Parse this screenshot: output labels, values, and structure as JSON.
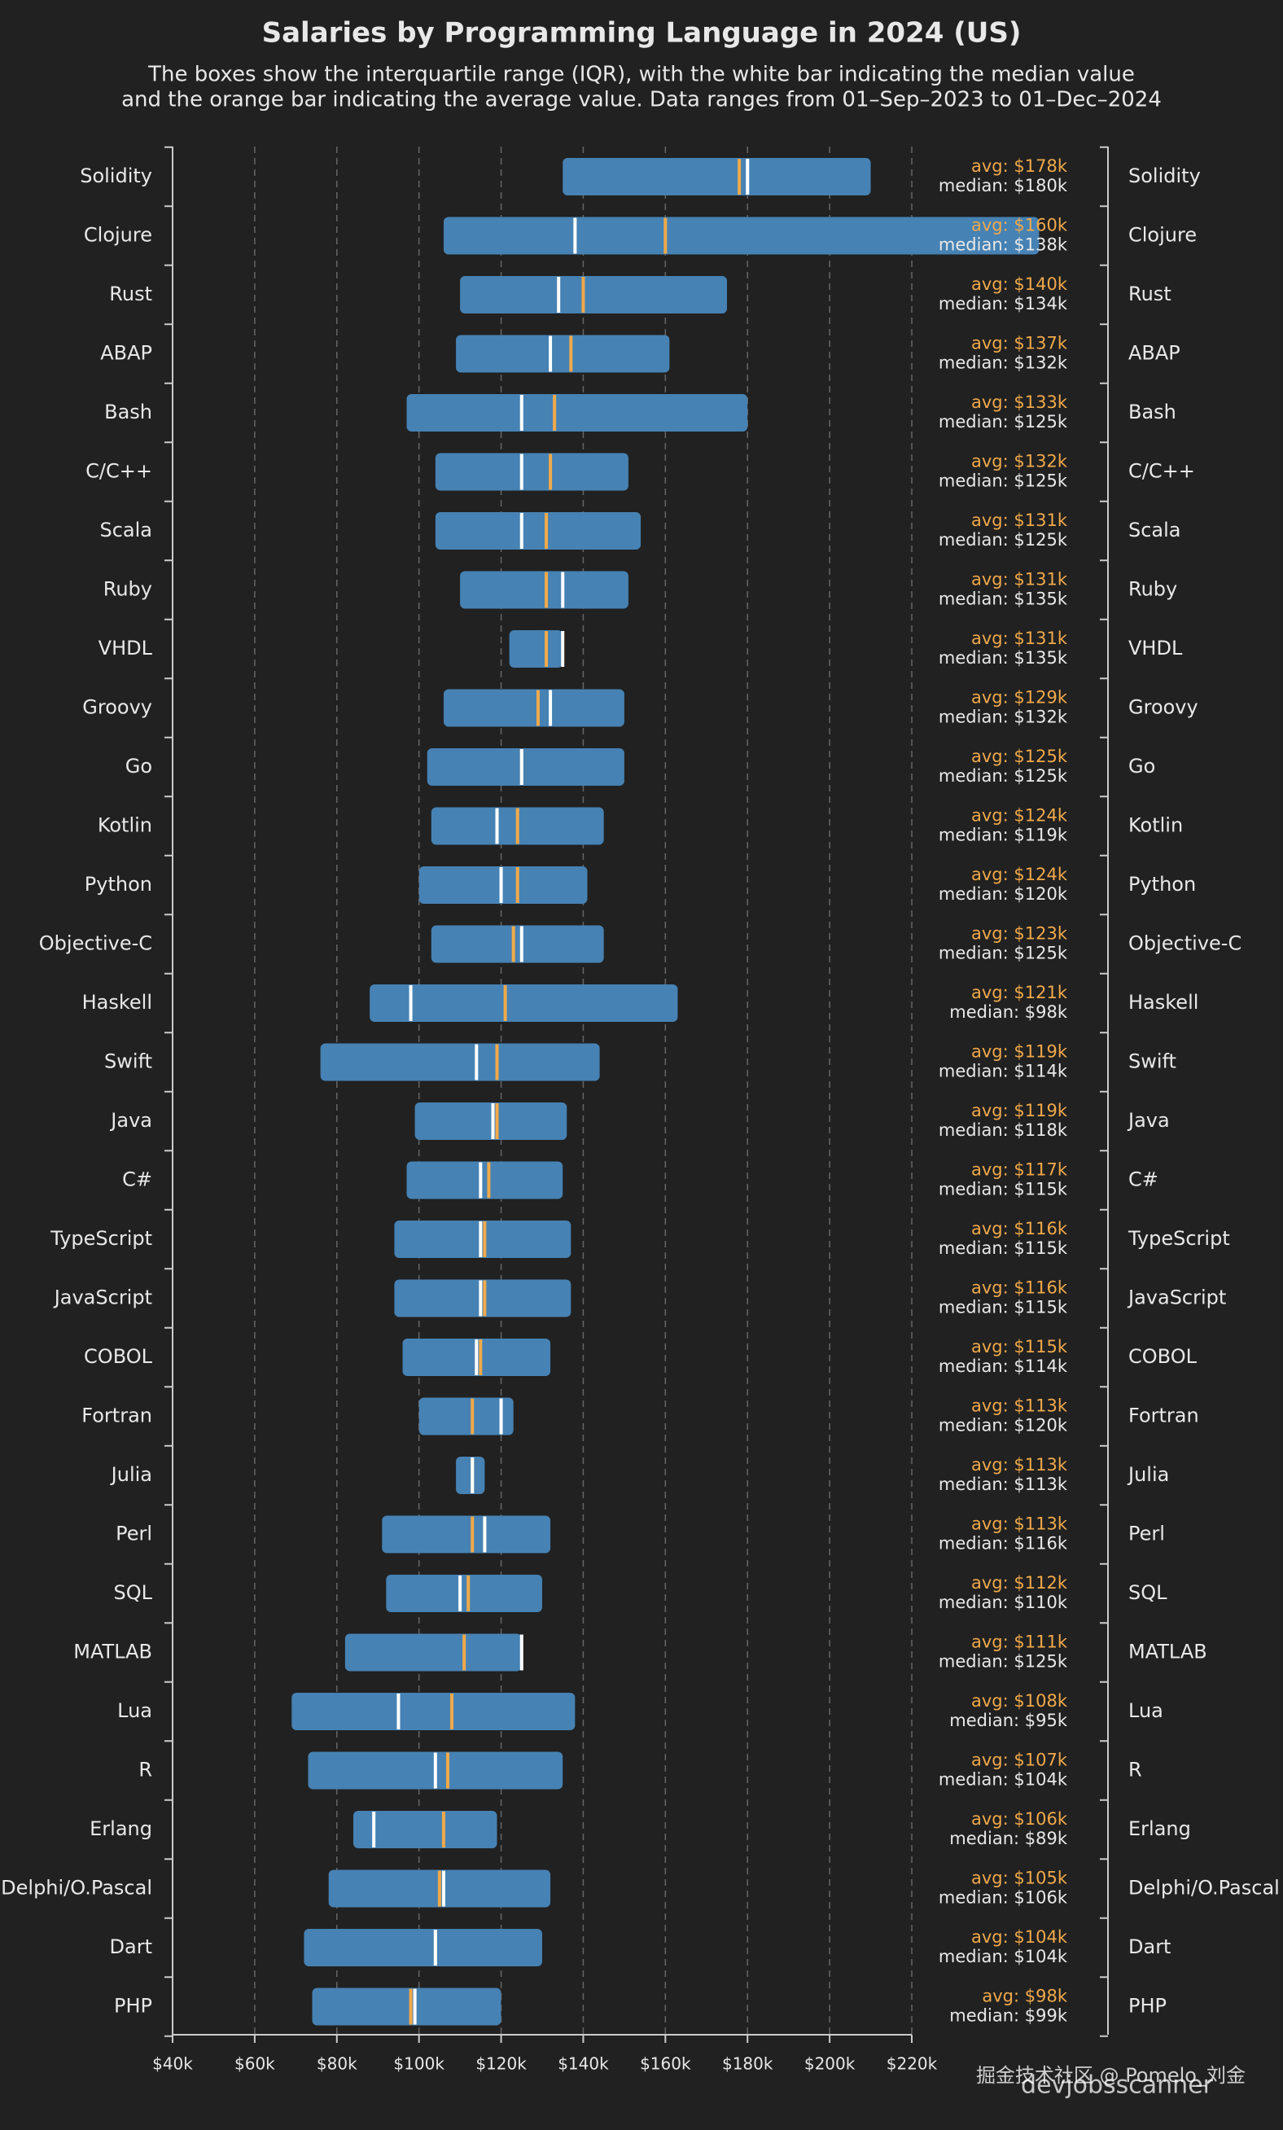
{
  "chart_data": {
    "type": "box",
    "title": "Salaries by Programming Language in 2024 (US)",
    "subtitle": [
      "The boxes show the interquartile range (IQR), with the white bar indicating the median value",
      "and the orange bar indicating the average value. Data ranges from 01–Sep–2023 to 01–Dec–2024"
    ],
    "categories": [
      "Solidity",
      "Clojure",
      "Rust",
      "ABAP",
      "Bash",
      "C/C++",
      "Scala",
      "Ruby",
      "VHDL",
      "Groovy",
      "Go",
      "Kotlin",
      "Python",
      "Objective-C",
      "Haskell",
      "Swift",
      "Java",
      "C#",
      "TypeScript",
      "JavaScript",
      "COBOL",
      "Fortran",
      "Julia",
      "Perl",
      "SQL",
      "MATLAB",
      "Lua",
      "R",
      "Erlang",
      "Delphi/O.Pascal",
      "Dart",
      "PHP"
    ],
    "q1": [
      135000,
      106000,
      110000,
      109000,
      97000,
      104000,
      104000,
      110000,
      122000,
      106000,
      102000,
      103000,
      100000,
      103000,
      88000,
      76000,
      99000,
      97000,
      94000,
      94000,
      96000,
      100000,
      109000,
      91000,
      92000,
      82000,
      69000,
      73000,
      84000,
      78000,
      72000,
      74000
    ],
    "q3": [
      210000,
      251000,
      175000,
      161000,
      180000,
      151000,
      154000,
      151000,
      135000,
      150000,
      150000,
      145000,
      141000,
      145000,
      163000,
      144000,
      136000,
      135000,
      137000,
      137000,
      132000,
      123000,
      116000,
      132000,
      130000,
      125000,
      138000,
      135000,
      119000,
      132000,
      130000,
      120000
    ],
    "box_color": "#4682b4",
    "avg": {
      "color": "#f0a94a",
      "values": [
        178000,
        160000,
        140000,
        137000,
        133000,
        132000,
        131000,
        131000,
        131000,
        129000,
        125000,
        124000,
        124000,
        123000,
        121000,
        119000,
        119000,
        117000,
        116000,
        116000,
        115000,
        113000,
        113000,
        113000,
        112000,
        111000,
        108000,
        107000,
        106000,
        105000,
        104000,
        98000
      ],
      "value_labels": [
        "avg: $178k",
        "avg: $160k",
        "avg: $140k",
        "avg: $137k",
        "avg: $133k",
        "avg: $132k",
        "avg: $131k",
        "avg: $131k",
        "avg: $131k",
        "avg: $129k",
        "avg: $125k",
        "avg: $124k",
        "avg: $124k",
        "avg: $123k",
        "avg: $121k",
        "avg: $119k",
        "avg: $119k",
        "avg: $117k",
        "avg: $116k",
        "avg: $116k",
        "avg: $115k",
        "avg: $113k",
        "avg: $113k",
        "avg: $113k",
        "avg: $112k",
        "avg: $111k",
        "avg: $108k",
        "avg: $107k",
        "avg: $106k",
        "avg: $105k",
        "avg: $104k",
        "avg: $98k"
      ]
    },
    "median": {
      "color": "#ffffff",
      "values": [
        180000,
        138000,
        134000,
        132000,
        125000,
        125000,
        125000,
        135000,
        135000,
        132000,
        125000,
        119000,
        120000,
        125000,
        98000,
        114000,
        118000,
        115000,
        115000,
        115000,
        114000,
        120000,
        113000,
        116000,
        110000,
        125000,
        95000,
        104000,
        89000,
        106000,
        104000,
        99000
      ],
      "value_labels": [
        "median: $180k",
        "median: $138k",
        "median: $134k",
        "median: $132k",
        "median: $125k",
        "median: $125k",
        "median: $125k",
        "median: $135k",
        "median: $135k",
        "median: $132k",
        "median: $125k",
        "median: $119k",
        "median: $120k",
        "median: $125k",
        "median: $98k",
        "median: $114k",
        "median: $118k",
        "median: $115k",
        "median: $115k",
        "median: $115k",
        "median: $114k",
        "median: $120k",
        "median: $113k",
        "median: $116k",
        "median: $110k",
        "median: $125k",
        "median: $95k",
        "median: $104k",
        "median: $89k",
        "median: $106k",
        "median: $104k",
        "median: $99k"
      ]
    },
    "xlim": [
      40000,
      220000
    ],
    "xticks": [
      {
        "value": 40000,
        "label": "$40k"
      },
      {
        "value": 60000,
        "label": "$60k"
      },
      {
        "value": 80000,
        "label": "$80k"
      },
      {
        "value": 100000,
        "label": "$100k"
      },
      {
        "value": 120000,
        "label": "$120k"
      },
      {
        "value": 140000,
        "label": "$140k"
      },
      {
        "value": 160000,
        "label": "$160k"
      },
      {
        "value": 180000,
        "label": "$180k"
      },
      {
        "value": 200000,
        "label": "$200k"
      },
      {
        "value": 220000,
        "label": "$220k"
      }
    ],
    "grid": true,
    "watermark": "掘金技术社区 @ Pomelo_刘金",
    "logo": "devjobsscanner"
  }
}
